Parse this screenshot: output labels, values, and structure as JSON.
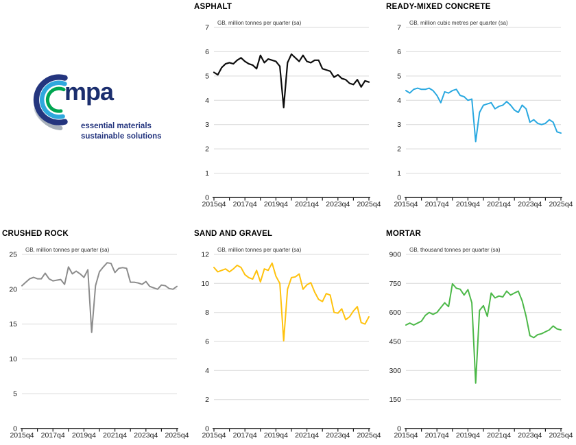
{
  "page": {
    "background": "#ffffff"
  },
  "logo": {
    "brand": "mpa",
    "tagline_line1": "essential materials",
    "tagline_line2": "sustainable solutions",
    "colors": {
      "navy_arc": "#24357E",
      "blue_arc": "#2FA8DD",
      "green_arc": "#00A651",
      "gray_arc": "#A7B0BA",
      "pale_arc": "#CBD1D8",
      "brand_text": "#1B2E6E",
      "tagline_text": "#24357E"
    }
  },
  "axis_style": {
    "gridline_color": "#D9D9D9",
    "axis_color": "#1A1A1A",
    "label_color": "#1A1A1A",
    "subtitle_color": "#333333"
  },
  "chart_data": [
    {
      "type": "line",
      "title": "ASPHALT",
      "subtitle": "GB, million tonnes per quarter (sa)",
      "line_color": "#0D0D0D",
      "line_width": 2.2,
      "ylim": [
        0,
        7
      ],
      "yticks": [
        0,
        1,
        2,
        3,
        4,
        5,
        6,
        7
      ],
      "grid": "horizontal",
      "legend": "none",
      "x_tick_labels": [
        "2015q4",
        "2017q4",
        "2019q4",
        "2021q4",
        "2023q4",
        "2025q4"
      ],
      "categories": [
        "2015q4",
        "2016q1",
        "2016q2",
        "2016q3",
        "2016q4",
        "2017q1",
        "2017q2",
        "2017q3",
        "2017q4",
        "2018q1",
        "2018q2",
        "2018q3",
        "2018q4",
        "2019q1",
        "2019q2",
        "2019q3",
        "2019q4",
        "2020q1",
        "2020q2",
        "2020q3",
        "2020q4",
        "2021q1",
        "2021q2",
        "2021q3",
        "2021q4",
        "2022q1",
        "2022q2",
        "2022q3",
        "2022q4",
        "2023q1",
        "2023q2",
        "2023q3",
        "2023q4",
        "2024q1",
        "2024q2",
        "2024q3",
        "2024q4",
        "2025q1",
        "2025q2",
        "2025q3",
        "2025q4"
      ],
      "values": [
        5.15,
        5.05,
        5.35,
        5.5,
        5.55,
        5.5,
        5.65,
        5.75,
        5.6,
        5.5,
        5.45,
        5.3,
        5.85,
        5.55,
        5.7,
        5.65,
        5.6,
        5.4,
        3.7,
        5.55,
        5.9,
        5.75,
        5.6,
        5.85,
        5.6,
        5.55,
        5.65,
        5.65,
        5.3,
        5.25,
        5.2,
        4.95,
        5.05,
        4.9,
        4.85,
        4.7,
        4.65,
        4.85,
        4.55,
        4.8,
        4.75
      ]
    },
    {
      "type": "line",
      "title": "READY-MIXED CONCRETE",
      "subtitle": "GB, million cubic metres per quarter (sa)",
      "line_color": "#29A8E0",
      "line_width": 2,
      "ylim": [
        0,
        7
      ],
      "yticks": [
        0,
        1,
        2,
        3,
        4,
        5,
        6,
        7
      ],
      "grid": "horizontal",
      "legend": "none",
      "x_tick_labels": [
        "2015q4",
        "2017q4",
        "2019q4",
        "2021q4",
        "2023q4",
        "2025q4"
      ],
      "categories": [
        "2015q4",
        "2016q1",
        "2016q2",
        "2016q3",
        "2016q4",
        "2017q1",
        "2017q2",
        "2017q3",
        "2017q4",
        "2018q1",
        "2018q2",
        "2018q3",
        "2018q4",
        "2019q1",
        "2019q2",
        "2019q3",
        "2019q4",
        "2020q1",
        "2020q2",
        "2020q3",
        "2020q4",
        "2021q1",
        "2021q2",
        "2021q3",
        "2021q4",
        "2022q1",
        "2022q2",
        "2022q3",
        "2022q4",
        "2023q1",
        "2023q2",
        "2023q3",
        "2023q4",
        "2024q1",
        "2024q2",
        "2024q3",
        "2024q4",
        "2025q1",
        "2025q2",
        "2025q3",
        "2025q4"
      ],
      "values": [
        4.4,
        4.3,
        4.45,
        4.5,
        4.45,
        4.45,
        4.5,
        4.4,
        4.2,
        3.9,
        4.35,
        4.3,
        4.4,
        4.45,
        4.2,
        4.15,
        4.0,
        4.05,
        2.3,
        3.5,
        3.8,
        3.85,
        3.9,
        3.65,
        3.75,
        3.8,
        3.95,
        3.8,
        3.6,
        3.5,
        3.8,
        3.65,
        3.1,
        3.2,
        3.05,
        3.0,
        3.05,
        3.2,
        3.1,
        2.7,
        2.65
      ]
    },
    {
      "type": "line",
      "title": "CRUSHED ROCK",
      "subtitle": "GB, million tonnes per quarter (sa)",
      "line_color": "#8C8C8C",
      "line_width": 2,
      "ylim": [
        0,
        25
      ],
      "yticks": [
        0,
        5,
        10,
        15,
        20,
        25
      ],
      "grid": "horizontal",
      "legend": "none",
      "x_tick_labels": [
        "2015q4",
        "2017q4",
        "2019q4",
        "2021q4",
        "2023q4",
        "2025q4"
      ],
      "categories": [
        "2015q4",
        "2016q1",
        "2016q2",
        "2016q3",
        "2016q4",
        "2017q1",
        "2017q2",
        "2017q3",
        "2017q4",
        "2018q1",
        "2018q2",
        "2018q3",
        "2018q4",
        "2019q1",
        "2019q2",
        "2019q3",
        "2019q4",
        "2020q1",
        "2020q2",
        "2020q3",
        "2020q4",
        "2021q1",
        "2021q2",
        "2021q3",
        "2021q4",
        "2022q1",
        "2022q2",
        "2022q3",
        "2022q4",
        "2023q1",
        "2023q2",
        "2023q3",
        "2023q4",
        "2024q1",
        "2024q2",
        "2024q3",
        "2024q4",
        "2025q1",
        "2025q2",
        "2025q3",
        "2025q4"
      ],
      "values": [
        20.5,
        21.0,
        21.5,
        21.7,
        21.5,
        21.5,
        22.3,
        21.5,
        21.2,
        21.3,
        21.4,
        20.7,
        23.2,
        22.2,
        22.6,
        22.2,
        21.7,
        22.8,
        13.8,
        20.5,
        22.5,
        23.2,
        23.8,
        23.7,
        22.4,
        23.0,
        23.1,
        23.0,
        21.0,
        21.0,
        20.9,
        20.7,
        21.1,
        20.4,
        20.2,
        20.0,
        20.6,
        20.5,
        20.1,
        20.0,
        20.4
      ]
    },
    {
      "type": "line",
      "title": "SAND AND GRAVEL",
      "subtitle": "GB, million tonnes per quarter (sa)",
      "line_color": "#FFC20E",
      "line_width": 2,
      "ylim": [
        0,
        12
      ],
      "yticks": [
        0,
        2,
        4,
        6,
        8,
        10,
        12
      ],
      "grid": "horizontal",
      "legend": "none",
      "x_tick_labels": [
        "2015q4",
        "2017q4",
        "2019q4",
        "2021q4",
        "2023q4",
        "2025q4"
      ],
      "categories": [
        "2015q4",
        "2016q1",
        "2016q2",
        "2016q3",
        "2016q4",
        "2017q1",
        "2017q2",
        "2017q3",
        "2017q4",
        "2018q1",
        "2018q2",
        "2018q3",
        "2018q4",
        "2019q1",
        "2019q2",
        "2019q3",
        "2019q4",
        "2020q1",
        "2020q2",
        "2020q3",
        "2020q4",
        "2021q1",
        "2021q2",
        "2021q3",
        "2021q4",
        "2022q1",
        "2022q2",
        "2022q3",
        "2022q4",
        "2023q1",
        "2023q2",
        "2023q3",
        "2023q4",
        "2024q1",
        "2024q2",
        "2024q3",
        "2024q4",
        "2025q1",
        "2025q2",
        "2025q3",
        "2025q4"
      ],
      "values": [
        11.1,
        10.8,
        10.9,
        11.0,
        10.8,
        11.0,
        11.25,
        11.1,
        10.6,
        10.4,
        10.3,
        10.9,
        10.1,
        11.0,
        10.9,
        11.4,
        10.5,
        10.0,
        6.05,
        9.6,
        10.4,
        10.45,
        10.65,
        9.6,
        9.9,
        10.05,
        9.4,
        8.9,
        8.75,
        9.3,
        9.2,
        8.0,
        7.95,
        8.25,
        7.5,
        7.7,
        8.1,
        8.4,
        7.3,
        7.2,
        7.7
      ]
    },
    {
      "type": "line",
      "title": "MORTAR",
      "subtitle": "GB, thousand tonnes per quarter (sa)",
      "line_color": "#4CB848",
      "line_width": 2,
      "ylim": [
        0,
        900
      ],
      "yticks": [
        0,
        150,
        300,
        450,
        600,
        750,
        900
      ],
      "grid": "horizontal",
      "legend": "none",
      "x_tick_labels": [
        "2015q4",
        "2017q4",
        "2019q4",
        "2021q4",
        "2023q4",
        "2025q4"
      ],
      "categories": [
        "2015q4",
        "2016q1",
        "2016q2",
        "2016q3",
        "2016q4",
        "2017q1",
        "2017q2",
        "2017q3",
        "2017q4",
        "2018q1",
        "2018q2",
        "2018q3",
        "2018q4",
        "2019q1",
        "2019q2",
        "2019q3",
        "2019q4",
        "2020q1",
        "2020q2",
        "2020q3",
        "2020q4",
        "2021q1",
        "2021q2",
        "2021q3",
        "2021q4",
        "2022q1",
        "2022q2",
        "2022q3",
        "2022q4",
        "2023q1",
        "2023q2",
        "2023q3",
        "2023q4",
        "2024q1",
        "2024q2",
        "2024q3",
        "2024q4",
        "2025q1",
        "2025q2",
        "2025q3",
        "2025q4"
      ],
      "values": [
        535,
        545,
        535,
        545,
        555,
        585,
        600,
        590,
        600,
        625,
        650,
        630,
        748,
        725,
        720,
        690,
        718,
        650,
        235,
        610,
        635,
        580,
        700,
        675,
        685,
        680,
        710,
        690,
        700,
        710,
        660,
        580,
        480,
        470,
        485,
        490,
        500,
        510,
        530,
        515,
        510
      ]
    }
  ]
}
